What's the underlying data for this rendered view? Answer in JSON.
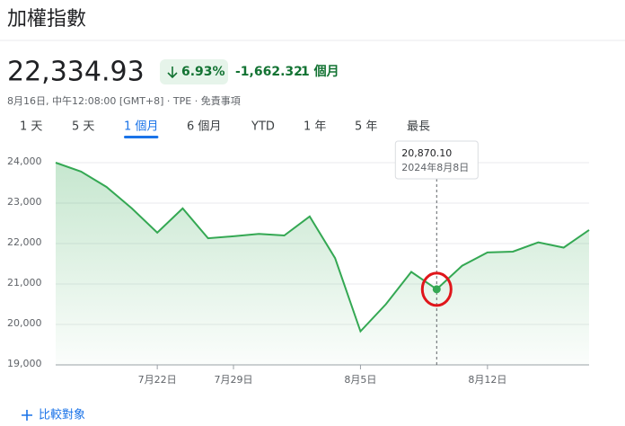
{
  "header": {
    "title": "加權指數",
    "price": "22,334.93",
    "change_percent": "6.93%",
    "change": "-1,662.32",
    "period": "1 個月",
    "timestamp": "8月16日, 中午12:08:00 [GMT+8] · TPE · 免責事項"
  },
  "tabs": [
    "1 天",
    "5 天",
    "1 個月",
    "6 個月",
    "YTD",
    "1 年",
    "5 年",
    "最長"
  ],
  "selected_tab": 2,
  "compare": "比較對象",
  "chart_data": {
    "type": "line",
    "categories": [
      null,
      null,
      null,
      null,
      "7月22日",
      null,
      null,
      "7月29日",
      null,
      null,
      null,
      null,
      "8月5日",
      null,
      null,
      null,
      null,
      "8月12日",
      null,
      null,
      null,
      null
    ],
    "series": [
      {
        "name": "加權指數",
        "color": "#34a853",
        "values": [
          24000,
          23780,
          23400,
          22870,
          22270,
          22870,
          22130,
          22180,
          22240,
          22200,
          22670,
          21640,
          19830,
          20500,
          21300,
          20870.1,
          21450,
          21780,
          21800,
          22030,
          21900,
          22334.93
        ]
      }
    ],
    "ylim": [
      19000,
      24000
    ],
    "yticks": [
      {
        "value": 19000,
        "label": "19,000"
      },
      {
        "value": 20000,
        "label": "20,000"
      },
      {
        "value": 21000,
        "label": "21,000"
      },
      {
        "value": 22000,
        "label": "22,000"
      },
      {
        "value": 23000,
        "label": "23,000"
      },
      {
        "value": 24000,
        "label": "24,000"
      }
    ],
    "grid": true,
    "tooltip": {
      "index": 15,
      "value_label": "20,870.10",
      "date": "2024年8月8日"
    }
  }
}
